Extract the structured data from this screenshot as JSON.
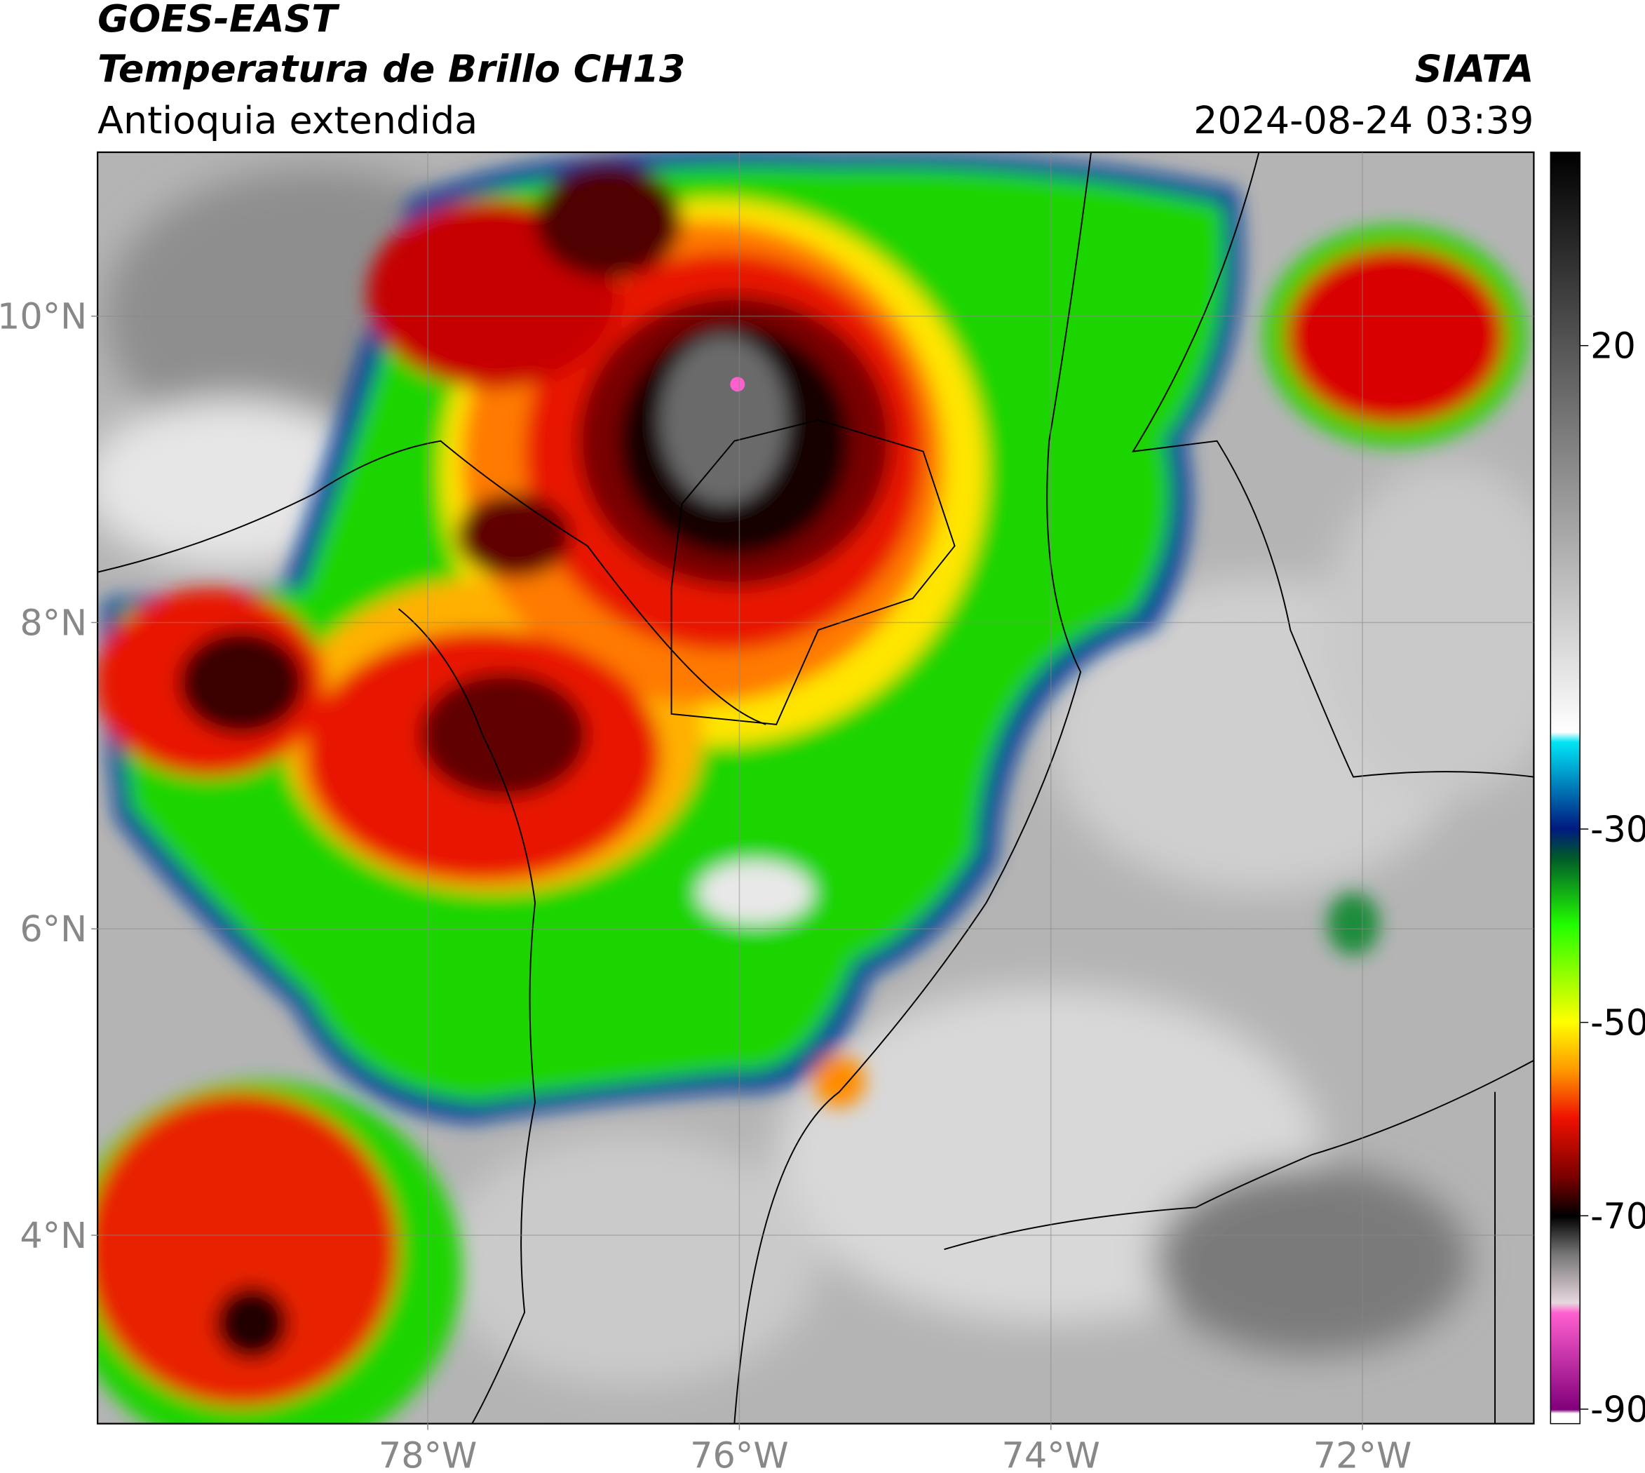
{
  "header": {
    "title": "GOES-EAST",
    "subtitle": "Temperatura de Brillo CH13",
    "region": "Antioquia extendida",
    "source": "SIATA",
    "datetime": "2024-08-24 03:39"
  },
  "map": {
    "xlim": [
      -80.12,
      -70.9
    ],
    "ylim": [
      2.77,
      11.07
    ],
    "xticks": [
      {
        "value": -78,
        "label": "78°W"
      },
      {
        "value": -76,
        "label": "76°W"
      },
      {
        "value": -74,
        "label": "74°W"
      },
      {
        "value": -72,
        "label": "72°W"
      }
    ],
    "yticks": [
      {
        "value": 4,
        "label": "4°N"
      },
      {
        "value": 6,
        "label": "6°N"
      },
      {
        "value": 8,
        "label": "8°N"
      },
      {
        "value": 10,
        "label": "10°N"
      }
    ],
    "grid": true
  },
  "colorbar": {
    "lim": [
      -91.5,
      40
    ],
    "ticks": [
      20,
      -30,
      -50,
      -70,
      -90
    ]
  }
}
